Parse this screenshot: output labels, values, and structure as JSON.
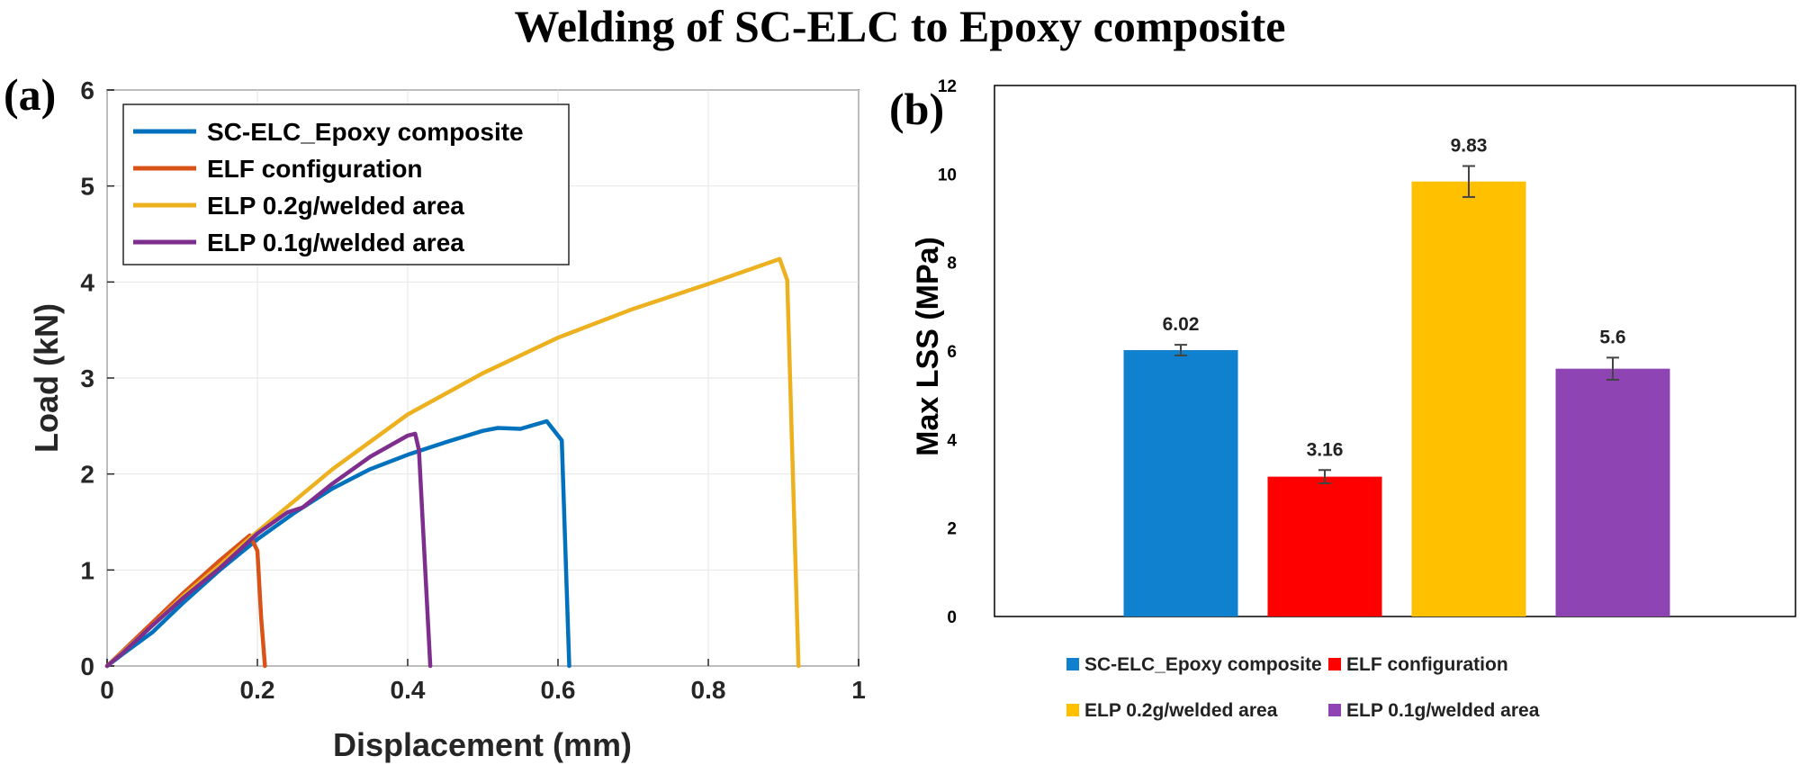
{
  "title": "Welding of SC-ELC to Epoxy composite",
  "chart_data": [
    {
      "panel_label": "(a)",
      "type": "line",
      "xlabel": "Displacement (mm)",
      "ylabel": "Load (kN)",
      "xlim": [
        0,
        1
      ],
      "ylim": [
        0,
        6
      ],
      "xticks": [
        0,
        0.2,
        0.4,
        0.6,
        0.8,
        1
      ],
      "xtick_labels": [
        "0",
        "0.2",
        "0.4",
        "0.6",
        "0.8",
        "1"
      ],
      "yticks": [
        0,
        1,
        2,
        3,
        4,
        5,
        6
      ],
      "ytick_labels": [
        "0",
        "1",
        "2",
        "3",
        "4",
        "5",
        "6"
      ],
      "grid": true,
      "legend_position": "top-left",
      "series": [
        {
          "name": "SC-ELC_Epoxy composite",
          "color": "#0072BD",
          "x": [
            0,
            0.02,
            0.06,
            0.1,
            0.15,
            0.2,
            0.25,
            0.3,
            0.35,
            0.4,
            0.45,
            0.5,
            0.52,
            0.55,
            0.585,
            0.605,
            0.615
          ],
          "y": [
            0,
            0.12,
            0.35,
            0.65,
            1.0,
            1.32,
            1.6,
            1.85,
            2.05,
            2.2,
            2.33,
            2.45,
            2.48,
            2.47,
            2.55,
            2.35,
            0
          ]
        },
        {
          "name": "ELF configuration",
          "color": "#D95319",
          "x": [
            0,
            0.02,
            0.06,
            0.1,
            0.15,
            0.19,
            0.2,
            0.205,
            0.21
          ],
          "y": [
            0,
            0.15,
            0.45,
            0.75,
            1.1,
            1.36,
            1.2,
            0.5,
            0
          ]
        },
        {
          "name": "ELP 0.2g/welded area",
          "color": "#EDB120",
          "x": [
            0,
            0.02,
            0.06,
            0.1,
            0.15,
            0.2,
            0.3,
            0.4,
            0.5,
            0.6,
            0.7,
            0.8,
            0.895,
            0.905,
            0.92
          ],
          "y": [
            0,
            0.14,
            0.42,
            0.72,
            1.05,
            1.4,
            2.05,
            2.62,
            3.05,
            3.42,
            3.72,
            3.98,
            4.24,
            4.02,
            0
          ]
        },
        {
          "name": "ELP 0.1g/welded area",
          "color": "#7E2F8E",
          "x": [
            0,
            0.02,
            0.06,
            0.1,
            0.15,
            0.2,
            0.24,
            0.26,
            0.3,
            0.35,
            0.4,
            0.41,
            0.415,
            0.43
          ],
          "y": [
            0,
            0.13,
            0.42,
            0.7,
            1.02,
            1.38,
            1.6,
            1.65,
            1.9,
            2.18,
            2.4,
            2.42,
            2.25,
            0
          ]
        }
      ]
    },
    {
      "panel_label": "(b)",
      "type": "bar",
      "xlabel": "",
      "ylabel": "Max LSS (MPa)",
      "ylim": [
        0,
        12
      ],
      "yticks": [
        0,
        2,
        4,
        6,
        8,
        10,
        12
      ],
      "ytick_labels": [
        "0",
        "2",
        "4",
        "6",
        "8",
        "10",
        "12"
      ],
      "grid": false,
      "legend_position": "bottom",
      "categories": [
        "SC-ELC_Epoxy composite",
        "ELF configuration",
        "ELP 0.2g/welded area",
        "ELP 0.1g/welded area"
      ],
      "values": [
        6.02,
        3.16,
        9.83,
        5.6
      ],
      "value_labels": [
        "6.02",
        "3.16",
        "9.83",
        "5.6"
      ],
      "errors": [
        0.12,
        0.15,
        0.35,
        0.25
      ],
      "colors": [
        "#0F81CE",
        "#FF0000",
        "#FFC000",
        "#8E44B2"
      ]
    }
  ]
}
